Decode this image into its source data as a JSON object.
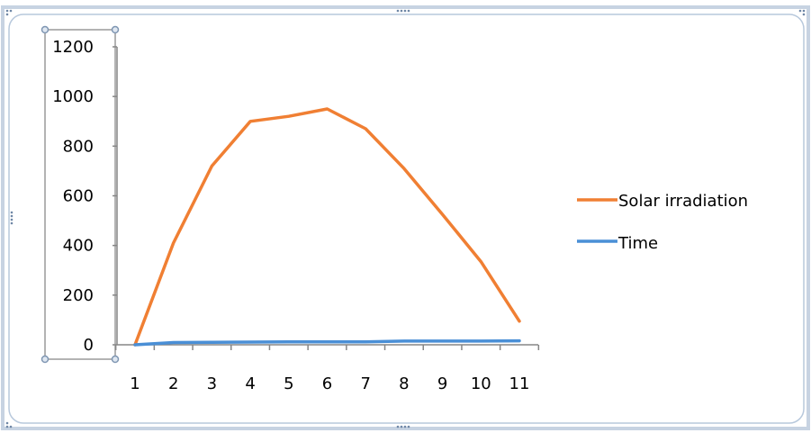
{
  "chart_data": {
    "type": "line",
    "categories": [
      "1",
      "2",
      "3",
      "4",
      "5",
      "6",
      "7",
      "8",
      "9",
      "10",
      "11"
    ],
    "series": [
      {
        "name": "Solar irradiation",
        "color": "#f07f33",
        "values": [
          0,
          410,
          720,
          900,
          920,
          950,
          870,
          710,
          525,
          335,
          95
        ]
      },
      {
        "name": "Time",
        "color": "#4a8fd6",
        "values": [
          0,
          9,
          10,
          11,
          12,
          12,
          12,
          15,
          15,
          15,
          16
        ]
      }
    ],
    "ylim": [
      0,
      1200
    ],
    "yticks": [
      "0",
      "200",
      "400",
      "600",
      "800",
      "1000",
      "1200"
    ],
    "grid": false,
    "legend_position": "right",
    "title": "",
    "xlabel": "",
    "ylabel": ""
  }
}
